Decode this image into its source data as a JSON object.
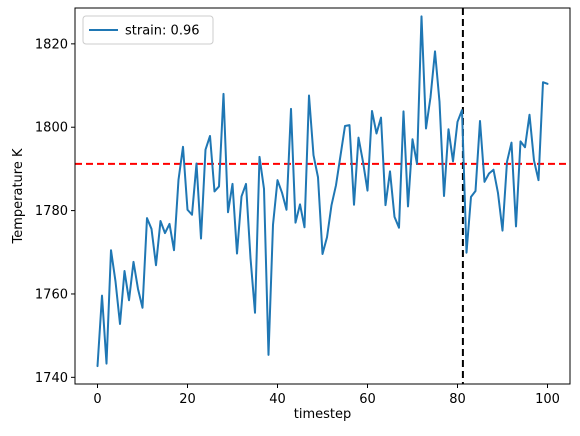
{
  "chart_data": {
    "type": "line",
    "xlabel": "timestep",
    "ylabel": "Temperature K",
    "xlim": [
      -5,
      105
    ],
    "ylim": [
      1738.4,
      1828.6
    ],
    "x_ticks": [
      0,
      20,
      40,
      60,
      80,
      100
    ],
    "y_ticks": [
      1740,
      1760,
      1780,
      1800,
      1820
    ],
    "legend_position": "top-left",
    "grid": false,
    "series": [
      {
        "name": "strain: 0.96",
        "color": "#1f77b4",
        "x": [
          0,
          1,
          2,
          3,
          4,
          5,
          6,
          7,
          8,
          9,
          10,
          11,
          12,
          13,
          14,
          15,
          16,
          17,
          18,
          19,
          20,
          21,
          22,
          23,
          24,
          25,
          26,
          27,
          28,
          29,
          30,
          31,
          32,
          33,
          34,
          35,
          36,
          37,
          38,
          39,
          40,
          41,
          42,
          43,
          44,
          45,
          46,
          47,
          48,
          49,
          50,
          51,
          52,
          53,
          54,
          55,
          56,
          57,
          58,
          59,
          60,
          61,
          62,
          63,
          64,
          65,
          66,
          67,
          68,
          69,
          70,
          71,
          72,
          73,
          74,
          75,
          76,
          77,
          78,
          79,
          80,
          81,
          82,
          83,
          84,
          85,
          86,
          87,
          88,
          89,
          90,
          91,
          92,
          93,
          94,
          95,
          96,
          97,
          98,
          99,
          100
        ],
        "values": [
          1742.7,
          1759.6,
          1743.3,
          1770.5,
          1763.0,
          1752.8,
          1765.5,
          1758.5,
          1767.7,
          1761.2,
          1756.7,
          1778.2,
          1775.6,
          1766.9,
          1777.5,
          1774.6,
          1776.8,
          1770.5,
          1787.4,
          1795.3,
          1780.2,
          1779.0,
          1791.3,
          1773.3,
          1794.6,
          1797.9,
          1784.6,
          1785.8,
          1808.0,
          1779.6,
          1786.4,
          1769.7,
          1783.4,
          1786.4,
          1768.6,
          1755.5,
          1792.9,
          1785.2,
          1745.4,
          1776.6,
          1787.3,
          1784.3,
          1780.2,
          1804.4,
          1777.1,
          1781.5,
          1776.0,
          1807.6,
          1793.3,
          1788.0,
          1769.6,
          1773.6,
          1781.3,
          1786.1,
          1793.2,
          1800.3,
          1800.5,
          1781.4,
          1797.5,
          1791.7,
          1784.8,
          1803.9,
          1798.5,
          1802.3,
          1781.3,
          1789.4,
          1778.5,
          1775.9,
          1803.8,
          1781.0,
          1797.1,
          1791.2,
          1826.6,
          1799.7,
          1807.2,
          1818.2,
          1806.1,
          1783.5,
          1799.5,
          1791.8,
          1801.3,
          1804.1,
          1769.9,
          1783.3,
          1784.7,
          1801.5,
          1786.9,
          1788.9,
          1789.8,
          1784.2,
          1775.2,
          1791.7,
          1796.3,
          1776.2,
          1796.6,
          1795.2,
          1803.0,
          1792.0,
          1787.3,
          1810.8,
          1810.4
        ]
      }
    ],
    "reference_lines": [
      {
        "orientation": "horizontal",
        "value": 1791.2,
        "color": "#ff0000",
        "style": "dashed"
      },
      {
        "orientation": "vertical",
        "value": 81.2,
        "color": "#000000",
        "style": "dashed"
      }
    ]
  }
}
